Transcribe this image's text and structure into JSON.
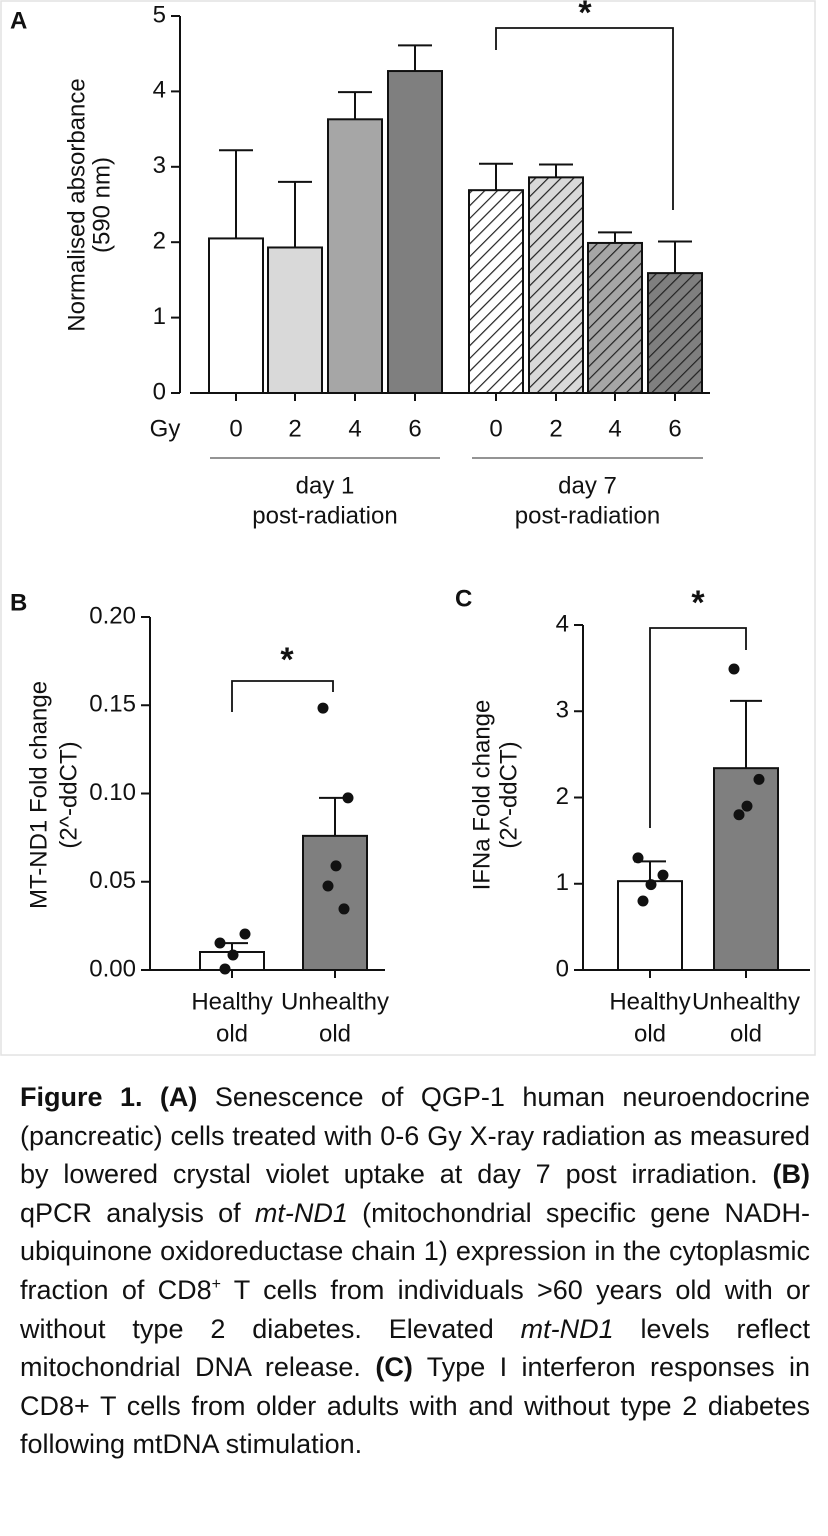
{
  "chart_data": [
    {
      "type": "bar",
      "panel": "A",
      "ylabel": [
        "Normalised absorbance",
        "(590 nm)"
      ],
      "xlabel": "Gy",
      "categories": [
        "0",
        "2",
        "4",
        "6",
        "0",
        "2",
        "4",
        "6"
      ],
      "values": [
        2.05,
        1.93,
        3.63,
        4.27,
        2.69,
        2.86,
        1.99,
        1.59
      ],
      "errors": [
        1.17,
        0.87,
        0.36,
        0.34,
        0.35,
        0.17,
        0.14,
        0.42
      ],
      "error_direction": "up",
      "colors": [
        "#ffffff",
        "#d9d9d9",
        "#a6a6a6",
        "#7f7f7f",
        "#ffffff",
        "#d9d9d9",
        "#a6a6a6",
        "#7f7f7f"
      ],
      "hatched": [
        false,
        false,
        false,
        false,
        true,
        true,
        true,
        true
      ],
      "groups": [
        [
          "day 1",
          "post-radiation"
        ],
        [
          "day 7",
          "post-radiation"
        ]
      ],
      "annotation": "*",
      "ylim": [
        0,
        5
      ],
      "yticks": [
        0,
        1,
        2,
        3,
        4,
        5
      ]
    },
    {
      "type": "bar",
      "panel": "B",
      "ylabel": [
        "MT-ND1 Fold change",
        "(2^-ddCT)"
      ],
      "categories": [
        [
          "Healthy",
          "old"
        ],
        [
          "Unhealthy",
          "old"
        ]
      ],
      "values": [
        0.0102,
        0.076
      ],
      "errors": [
        0.005,
        0.0215
      ],
      "error_direction": "both",
      "colors": [
        "#ffffff",
        "#7f7f7f"
      ],
      "hatched": [
        false,
        false
      ],
      "points": [
        [
          0.0153,
          0.0204,
          0.0085,
          0.0006
        ],
        [
          0.1484,
          0.0975,
          0.059,
          0.0476,
          0.0346
        ]
      ],
      "annotation": "*",
      "ylim": [
        0,
        0.2
      ],
      "yticks": [
        {
          "value": 0,
          "label": "0.00"
        },
        {
          "value": 0.05,
          "label": "0.05"
        },
        {
          "value": 0.1,
          "label": "0.10"
        },
        {
          "value": 0.15,
          "label": "0.15"
        },
        {
          "value": 0.2,
          "label": "0.20"
        }
      ]
    },
    {
      "type": "bar",
      "panel": "C",
      "ylabel": [
        "IFNa  Fold change",
        "(2^-ddCT)"
      ],
      "categories": [
        [
          "Healthy",
          "old"
        ],
        [
          "Unhealthy",
          "old"
        ]
      ],
      "values": [
        1.03,
        2.34
      ],
      "errors": [
        0.23,
        0.78
      ],
      "error_direction": "both",
      "colors": [
        "#ffffff",
        "#7f7f7f"
      ],
      "hatched": [
        false,
        false
      ],
      "points": [
        [
          1.3,
          1.1,
          0.99,
          0.8
        ],
        [
          3.49,
          2.21,
          1.9,
          1.8
        ]
      ],
      "annotation": "*",
      "ylim": [
        0,
        4
      ],
      "yticks": [
        0,
        1,
        2,
        3,
        4
      ]
    }
  ],
  "caption": {
    "runs": [
      {
        "text": "Figure 1.  (A)",
        "bold": true
      },
      {
        "text": " Senescence of QGP-1 human neuroendocrine (pancreatic) cells treated with 0-6 Gy X-ray radiation as measured by lowered crystal violet uptake at day 7 post irradiation. "
      },
      {
        "text": "(B)",
        "bold": true
      },
      {
        "text": " qPCR analysis of "
      },
      {
        "text": "mt-ND1",
        "italic": true
      },
      {
        "text": " (mitochondrial specific gene NADH-ubiquinone oxidoreductase chain 1) expression in the cytoplasmic fraction of CD8"
      },
      {
        "text": "+",
        "sup": true
      },
      {
        "text": " T cells from individuals >60 years old with or without type 2 diabetes. Elevated "
      },
      {
        "text": "mt-ND1",
        "italic": true
      },
      {
        "text": " levels reflect mitochondrial DNA release. "
      },
      {
        "text": "(C)",
        "bold": true
      },
      {
        "text": " Type I interferon responses in CD8+ T cells from older adults with and without type 2 diabetes following mtDNA stimulation."
      }
    ]
  }
}
